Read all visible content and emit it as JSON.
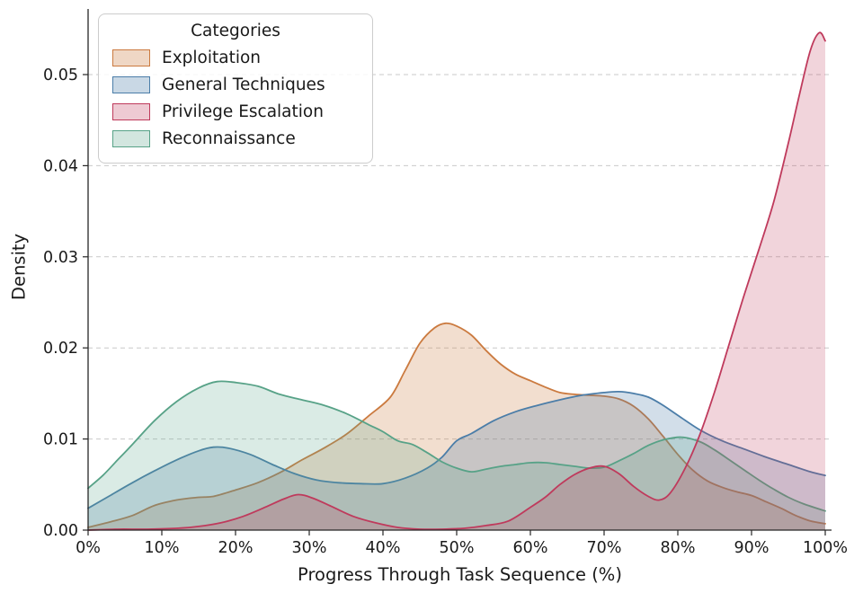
{
  "chart_data": {
    "type": "area",
    "subtype": "kde-density",
    "title": "",
    "xlabel": "Progress Through Task Sequence (%)",
    "ylabel": "Density",
    "legend_title": "Categories",
    "legend_position": "upper left",
    "xlim": [
      0,
      100
    ],
    "ylim": [
      0,
      0.057
    ],
    "grid": {
      "axis": "y",
      "style": "dashed",
      "color": "#c9c9c9"
    },
    "x_ticks": [
      0,
      10,
      20,
      30,
      40,
      50,
      60,
      70,
      80,
      90,
      100
    ],
    "x_tick_labels": [
      "0%",
      "10%",
      "20%",
      "30%",
      "40%",
      "50%",
      "60%",
      "70%",
      "80%",
      "90%",
      "100%"
    ],
    "y_ticks": [
      0.0,
      0.01,
      0.02,
      0.03,
      0.04,
      0.05
    ],
    "y_tick_labels": [
      "0.00",
      "0.01",
      "0.02",
      "0.03",
      "0.04",
      "0.05"
    ],
    "draw_order": [
      0,
      1,
      3,
      2
    ],
    "series": [
      {
        "name": "Exploitation",
        "color": "#cb7a3f",
        "fill_alpha": 0.25,
        "points": [
          [
            0,
            0.0003
          ],
          [
            3,
            0.0009
          ],
          [
            6,
            0.0016
          ],
          [
            9,
            0.0027
          ],
          [
            12,
            0.0033
          ],
          [
            15,
            0.0036
          ],
          [
            17,
            0.0037
          ],
          [
            20,
            0.0044
          ],
          [
            23,
            0.0052
          ],
          [
            26,
            0.0063
          ],
          [
            29,
            0.0077
          ],
          [
            32,
            0.009
          ],
          [
            35,
            0.0105
          ],
          [
            38,
            0.0125
          ],
          [
            41,
            0.0146
          ],
          [
            43,
            0.0175
          ],
          [
            45,
            0.0205
          ],
          [
            47,
            0.0222
          ],
          [
            48.5,
            0.0227
          ],
          [
            50,
            0.0224
          ],
          [
            52,
            0.0214
          ],
          [
            54,
            0.0197
          ],
          [
            56,
            0.0182
          ],
          [
            58,
            0.0171
          ],
          [
            60,
            0.0164
          ],
          [
            62,
            0.0157
          ],
          [
            64,
            0.0151
          ],
          [
            66,
            0.0149
          ],
          [
            68,
            0.0148
          ],
          [
            70,
            0.0147
          ],
          [
            72,
            0.0144
          ],
          [
            74,
            0.0136
          ],
          [
            76,
            0.0122
          ],
          [
            78,
            0.0103
          ],
          [
            80,
            0.0083
          ],
          [
            82,
            0.0066
          ],
          [
            84,
            0.0054
          ],
          [
            86,
            0.0047
          ],
          [
            88,
            0.0042
          ],
          [
            90,
            0.0038
          ],
          [
            92,
            0.0031
          ],
          [
            94,
            0.0024
          ],
          [
            96,
            0.0016
          ],
          [
            98,
            0.001
          ],
          [
            100,
            0.0007
          ]
        ]
      },
      {
        "name": "General Techniques",
        "color": "#4b7da8",
        "fill_alpha": 0.25,
        "points": [
          [
            0,
            0.0024
          ],
          [
            3,
            0.0038
          ],
          [
            6,
            0.0052
          ],
          [
            9,
            0.0065
          ],
          [
            12,
            0.0077
          ],
          [
            15,
            0.0087
          ],
          [
            17,
            0.0091
          ],
          [
            19,
            0.009
          ],
          [
            22,
            0.0083
          ],
          [
            25,
            0.0072
          ],
          [
            28,
            0.0062
          ],
          [
            31,
            0.0055
          ],
          [
            34,
            0.0052
          ],
          [
            37,
            0.0051
          ],
          [
            40,
            0.0051
          ],
          [
            43,
            0.0057
          ],
          [
            46,
            0.0068
          ],
          [
            48,
            0.008
          ],
          [
            50,
            0.0098
          ],
          [
            52,
            0.0106
          ],
          [
            55,
            0.012
          ],
          [
            58,
            0.013
          ],
          [
            61,
            0.0137
          ],
          [
            64,
            0.0143
          ],
          [
            67,
            0.0148
          ],
          [
            70,
            0.0151
          ],
          [
            72,
            0.0152
          ],
          [
            74,
            0.015
          ],
          [
            76,
            0.0146
          ],
          [
            78,
            0.0137
          ],
          [
            80,
            0.0126
          ],
          [
            83,
            0.011
          ],
          [
            86,
            0.0098
          ],
          [
            89,
            0.0089
          ],
          [
            92,
            0.008
          ],
          [
            95,
            0.0072
          ],
          [
            98,
            0.0064
          ],
          [
            100,
            0.006
          ]
        ]
      },
      {
        "name": "Privilege Escalation",
        "color": "#bf3a5c",
        "fill_alpha": 0.22,
        "points": [
          [
            0,
            0.0
          ],
          [
            4,
            0.0001
          ],
          [
            8,
            0.0001
          ],
          [
            12,
            0.0002
          ],
          [
            15,
            0.0004
          ],
          [
            18,
            0.0008
          ],
          [
            21,
            0.0015
          ],
          [
            24,
            0.0025
          ],
          [
            26.5,
            0.0034
          ],
          [
            28.5,
            0.0039
          ],
          [
            30.5,
            0.0035
          ],
          [
            33,
            0.0026
          ],
          [
            36,
            0.0015
          ],
          [
            39,
            0.0008
          ],
          [
            42,
            0.0003
          ],
          [
            45,
            0.0001
          ],
          [
            48,
            0.0001
          ],
          [
            51,
            0.0002
          ],
          [
            54,
            0.0005
          ],
          [
            57,
            0.001
          ],
          [
            60,
            0.0025
          ],
          [
            62,
            0.0036
          ],
          [
            64,
            0.005
          ],
          [
            66,
            0.0061
          ],
          [
            68,
            0.0068
          ],
          [
            70,
            0.007
          ],
          [
            72,
            0.0062
          ],
          [
            74,
            0.0048
          ],
          [
            76,
            0.0037
          ],
          [
            77.5,
            0.0033
          ],
          [
            79,
            0.0041
          ],
          [
            81,
            0.0068
          ],
          [
            83,
            0.0105
          ],
          [
            85,
            0.0152
          ],
          [
            87,
            0.0205
          ],
          [
            89,
            0.0258
          ],
          [
            91,
            0.0308
          ],
          [
            93,
            0.036
          ],
          [
            95,
            0.0425
          ],
          [
            96.5,
            0.0478
          ],
          [
            98,
            0.0527
          ],
          [
            99.2,
            0.0546
          ],
          [
            100,
            0.0537
          ]
        ]
      },
      {
        "name": "Reconnaissance",
        "color": "#57a287",
        "fill_alpha": 0.22,
        "points": [
          [
            0,
            0.0046
          ],
          [
            2,
            0.006
          ],
          [
            4,
            0.0077
          ],
          [
            6,
            0.0094
          ],
          [
            9,
            0.012
          ],
          [
            12,
            0.0141
          ],
          [
            15,
            0.0156
          ],
          [
            17.5,
            0.0163
          ],
          [
            20,
            0.0162
          ],
          [
            23,
            0.0158
          ],
          [
            26,
            0.0149
          ],
          [
            29,
            0.0143
          ],
          [
            32,
            0.0137
          ],
          [
            35,
            0.0128
          ],
          [
            38,
            0.0116
          ],
          [
            40,
            0.0108
          ],
          [
            42,
            0.0098
          ],
          [
            44,
            0.0094
          ],
          [
            46,
            0.0085
          ],
          [
            48,
            0.0075
          ],
          [
            50,
            0.0068
          ],
          [
            52,
            0.0064
          ],
          [
            54,
            0.0067
          ],
          [
            56,
            0.007
          ],
          [
            58,
            0.0072
          ],
          [
            60,
            0.0074
          ],
          [
            62,
            0.0074
          ],
          [
            64,
            0.0072
          ],
          [
            66,
            0.007
          ],
          [
            68,
            0.0068
          ],
          [
            70,
            0.0069
          ],
          [
            72,
            0.0076
          ],
          [
            74,
            0.0084
          ],
          [
            76,
            0.0093
          ],
          [
            78,
            0.0099
          ],
          [
            80.5,
            0.0102
          ],
          [
            83,
            0.0097
          ],
          [
            85,
            0.0088
          ],
          [
            87,
            0.0077
          ],
          [
            89,
            0.0066
          ],
          [
            91,
            0.0055
          ],
          [
            93,
            0.0045
          ],
          [
            95,
            0.0036
          ],
          [
            97,
            0.0029
          ],
          [
            100,
            0.0021
          ]
        ]
      }
    ]
  }
}
